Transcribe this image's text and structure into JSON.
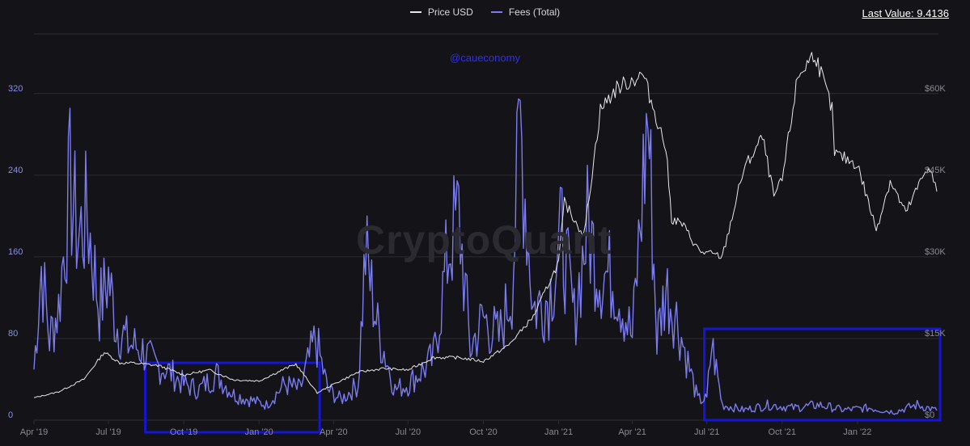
{
  "legend": {
    "price_label": "Price USD",
    "fees_label": "Fees (Total)"
  },
  "last_value": "Last Value: 9.4136",
  "handle": "@caueconomy",
  "watermark": "CryptoQuant",
  "colors": {
    "background": "#141318",
    "grid": "#2c2c33",
    "price_line": "#e8e8ea",
    "fees_line": "#7b7cf0",
    "left_axis_text": "#8c8ff2",
    "right_axis_text": "#8a8a92",
    "highlight_box": "#1515d6"
  },
  "chart_data": {
    "type": "line",
    "x_tick_labels": [
      "Apr '19",
      "Jul '19",
      "Oct '19",
      "Jan '20",
      "Apr '20",
      "Jul '20",
      "Oct '20",
      "Jan '21",
      "Apr '21",
      "Jul '21",
      "Oct '21",
      "Jan '22"
    ],
    "x_range": [
      "2019-04-01",
      "2022-04-10"
    ],
    "y_left": {
      "label": "",
      "ticks": [
        "0",
        "80",
        "160",
        "240",
        "320"
      ],
      "range": [
        0,
        380
      ]
    },
    "y_right": {
      "label": "",
      "ticks": [
        "$0",
        "$15K",
        "$30K",
        "$45K",
        "$60K"
      ],
      "range": [
        0,
        71250
      ]
    },
    "series": [
      {
        "name": "Price USD",
        "axis": "right",
        "points": [
          [
            "2019-04-01",
            4100
          ],
          [
            "2019-05-01",
            5200
          ],
          [
            "2019-06-01",
            7500
          ],
          [
            "2019-06-26",
            12500
          ],
          [
            "2019-07-15",
            10500
          ],
          [
            "2019-08-01",
            10500
          ],
          [
            "2019-09-01",
            10000
          ],
          [
            "2019-10-01",
            8300
          ],
          [
            "2019-11-01",
            9200
          ],
          [
            "2019-12-01",
            7400
          ],
          [
            "2020-01-01",
            7200
          ],
          [
            "2020-02-01",
            9400
          ],
          [
            "2020-02-15",
            10300
          ],
          [
            "2020-03-12",
            5000
          ],
          [
            "2020-04-01",
            6600
          ],
          [
            "2020-05-01",
            8800
          ],
          [
            "2020-06-01",
            9500
          ],
          [
            "2020-07-01",
            9200
          ],
          [
            "2020-08-01",
            11500
          ],
          [
            "2020-09-01",
            11500
          ],
          [
            "2020-10-01",
            10800
          ],
          [
            "2020-11-01",
            13800
          ],
          [
            "2020-12-01",
            19000
          ],
          [
            "2021-01-01",
            29000
          ],
          [
            "2021-01-08",
            40000
          ],
          [
            "2021-02-01",
            34000
          ],
          [
            "2021-02-21",
            57000
          ],
          [
            "2021-03-13",
            61000
          ],
          [
            "2021-04-14",
            63500
          ],
          [
            "2021-05-12",
            50000
          ],
          [
            "2021-05-19",
            37000
          ],
          [
            "2021-06-01",
            36000
          ],
          [
            "2021-06-22",
            31000
          ],
          [
            "2021-07-20",
            30000
          ],
          [
            "2021-08-15",
            46000
          ],
          [
            "2021-09-07",
            52000
          ],
          [
            "2021-09-21",
            41000
          ],
          [
            "2021-10-01",
            44000
          ],
          [
            "2021-10-20",
            63000
          ],
          [
            "2021-11-10",
            67500
          ],
          [
            "2021-12-01",
            57000
          ],
          [
            "2021-12-04",
            49000
          ],
          [
            "2022-01-01",
            47000
          ],
          [
            "2022-01-24",
            35000
          ],
          [
            "2022-02-10",
            44000
          ],
          [
            "2022-03-01",
            38000
          ],
          [
            "2022-03-29",
            47000
          ],
          [
            "2022-04-08",
            42000
          ]
        ]
      },
      {
        "name": "Fees (Total)",
        "axis": "left",
        "points": [
          [
            "2019-04-01",
            50
          ],
          [
            "2019-04-10",
            150
          ],
          [
            "2019-04-20",
            80
          ],
          [
            "2019-05-01",
            110
          ],
          [
            "2019-05-15",
            230
          ],
          [
            "2019-05-25",
            180
          ],
          [
            "2019-06-05",
            200
          ],
          [
            "2019-06-20",
            110
          ],
          [
            "2019-07-01",
            140
          ],
          [
            "2019-07-10",
            95
          ],
          [
            "2019-07-25",
            75
          ],
          [
            "2019-08-10",
            70
          ],
          [
            "2019-08-25",
            55
          ],
          [
            "2019-09-10",
            50
          ],
          [
            "2019-10-01",
            35
          ],
          [
            "2019-10-20",
            30
          ],
          [
            "2019-11-10",
            45
          ],
          [
            "2019-12-01",
            25
          ],
          [
            "2019-12-20",
            20
          ],
          [
            "2020-01-10",
            15
          ],
          [
            "2020-02-01",
            35
          ],
          [
            "2020-02-20",
            30
          ],
          [
            "2020-03-10",
            80
          ],
          [
            "2020-03-25",
            30
          ],
          [
            "2020-04-10",
            20
          ],
          [
            "2020-05-01",
            35
          ],
          [
            "2020-05-10",
            165
          ],
          [
            "2020-05-25",
            90
          ],
          [
            "2020-06-15",
            30
          ],
          [
            "2020-07-01",
            35
          ],
          [
            "2020-07-20",
            50
          ],
          [
            "2020-08-01",
            60
          ],
          [
            "2020-08-20",
            170
          ],
          [
            "2020-09-01",
            200
          ],
          [
            "2020-09-15",
            70
          ],
          [
            "2020-10-01",
            100
          ],
          [
            "2020-10-20",
            80
          ],
          [
            "2020-11-05",
            130
          ],
          [
            "2020-11-15",
            290
          ],
          [
            "2020-12-01",
            110
          ],
          [
            "2020-12-20",
            120
          ],
          [
            "2021-01-05",
            180
          ],
          [
            "2021-01-20",
            100
          ],
          [
            "2021-02-05",
            190
          ],
          [
            "2021-02-20",
            145
          ],
          [
            "2021-03-10",
            140
          ],
          [
            "2021-04-01",
            80
          ],
          [
            "2021-04-20",
            300
          ],
          [
            "2021-05-01",
            80
          ],
          [
            "2021-05-12",
            130
          ],
          [
            "2021-05-25",
            100
          ],
          [
            "2021-06-10",
            50
          ],
          [
            "2021-06-20",
            20
          ],
          [
            "2021-07-01",
            20
          ],
          [
            "2021-07-07",
            75
          ],
          [
            "2021-07-20",
            15
          ],
          [
            "2021-08-15",
            10
          ],
          [
            "2021-09-15",
            15
          ],
          [
            "2021-10-15",
            12
          ],
          [
            "2021-11-15",
            15
          ],
          [
            "2021-12-15",
            10
          ],
          [
            "2022-01-15",
            12
          ],
          [
            "2022-02-15",
            8
          ],
          [
            "2022-03-15",
            15
          ],
          [
            "2022-04-08",
            9.4136
          ]
        ]
      }
    ],
    "highlighted_ranges": [
      [
        "2019-08-15",
        "2020-03-15"
      ],
      [
        "2021-06-28",
        "2022-04-20"
      ]
    ],
    "grid": true,
    "legend_position": "top-center"
  }
}
